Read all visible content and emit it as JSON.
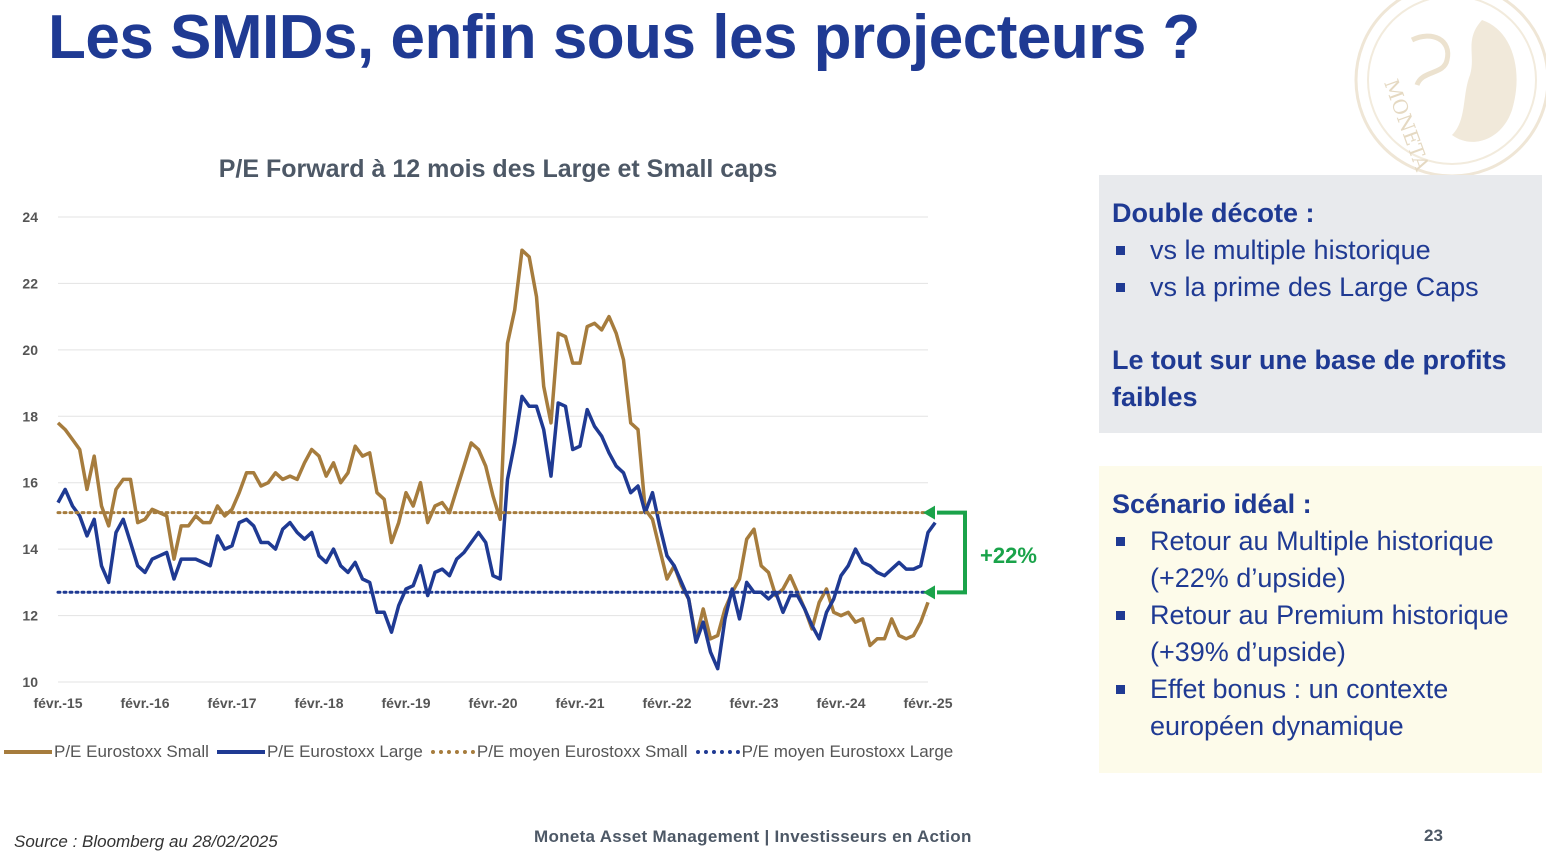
{
  "slide": {
    "title": "Les SMIDs, enfin sous les projecteurs ?",
    "source": "Source : Bloomberg au 28/02/2025",
    "company": "Moneta Asset Management | Investisseurs en Action",
    "page_number": "23"
  },
  "logo": {
    "text": "MONETA",
    "icon": "moneta-coin-logo"
  },
  "colors": {
    "small": "#a67c3d",
    "large": "#1f3a93",
    "accent": "#1aa34a",
    "title": "#1f3a93"
  },
  "annotation": {
    "label": "+22%"
  },
  "box1": {
    "heading": "Double décote :",
    "items": [
      "vs le multiple historique",
      "vs la prime des Large Caps"
    ],
    "subheading_line1": "Le tout sur une base de profits",
    "subheading_line2": "faibles"
  },
  "box2": {
    "heading": "Scénario idéal :",
    "items": [
      {
        "line1": "Retour au Multiple historique",
        "line2": "(+22% d’upside)"
      },
      {
        "line1": "Retour au Premium historique",
        "line2": "(+39% d’upside)"
      },
      {
        "line1": "Effet bonus : un contexte",
        "line2": "européen dynamique"
      }
    ]
  },
  "chart_data": {
    "type": "line",
    "title": "P/E Forward à 12 mois des Large et Small caps",
    "ylim": [
      10,
      24
    ],
    "yticks": [
      10,
      12,
      14,
      16,
      18,
      20,
      22,
      24
    ],
    "xlim": [
      2015.0,
      2025.0
    ],
    "xticks": [
      {
        "x": 2015,
        "label": "févr.-15"
      },
      {
        "x": 2016,
        "label": "févr.-16"
      },
      {
        "x": 2017,
        "label": "févr.-17"
      },
      {
        "x": 2018,
        "label": "févr.-18"
      },
      {
        "x": 2019,
        "label": "févr.-19"
      },
      {
        "x": 2020,
        "label": "févr.-20"
      },
      {
        "x": 2021,
        "label": "févr.-21"
      },
      {
        "x": 2022,
        "label": "févr.-22"
      },
      {
        "x": 2023,
        "label": "févr.-23"
      },
      {
        "x": 2024,
        "label": "févr.-24"
      },
      {
        "x": 2025,
        "label": "févr.-25"
      }
    ],
    "grid": "horizontal",
    "legend_position": "bottom",
    "series": [
      {
        "name": "P/E Eurostoxx Small",
        "style": "solid",
        "color": "#a67c3d",
        "start": 2015.0,
        "step": 0.08333,
        "values": [
          17.8,
          17.6,
          17.3,
          17.0,
          15.8,
          16.8,
          15.3,
          14.7,
          15.8,
          16.1,
          16.1,
          14.8,
          14.9,
          15.2,
          15.1,
          15.0,
          13.7,
          14.7,
          14.7,
          15.0,
          14.8,
          14.8,
          15.3,
          15.0,
          15.2,
          15.7,
          16.3,
          16.3,
          15.9,
          16.0,
          16.3,
          16.1,
          16.2,
          16.1,
          16.6,
          17.0,
          16.8,
          16.2,
          16.6,
          16.0,
          16.3,
          17.1,
          16.8,
          16.9,
          15.7,
          15.5,
          14.2,
          14.8,
          15.7,
          15.3,
          16.0,
          14.8,
          15.3,
          15.4,
          15.1,
          15.8,
          16.5,
          17.2,
          17.0,
          16.5,
          15.6,
          14.9,
          20.2,
          21.2,
          23.0,
          22.8,
          21.6,
          18.9,
          17.8,
          20.5,
          20.4,
          19.6,
          19.6,
          20.7,
          20.8,
          20.6,
          21.0,
          20.5,
          19.7,
          17.8,
          17.6,
          15.2,
          14.9,
          14.0,
          13.1,
          13.5,
          12.9,
          12.5,
          11.3,
          12.2,
          11.3,
          11.4,
          12.2,
          12.7,
          13.1,
          14.3,
          14.6,
          13.5,
          13.3,
          12.6,
          12.8,
          13.2,
          12.7,
          12.2,
          11.6,
          12.4,
          12.8,
          12.1,
          12.0,
          12.1,
          11.8,
          11.9,
          11.1,
          11.3,
          11.3,
          11.9,
          11.4,
          11.3,
          11.4,
          11.8,
          12.4
        ]
      },
      {
        "name": "P/E Eurostoxx Large",
        "style": "solid",
        "color": "#1f3a93",
        "start": 2015.0,
        "step": 0.08333,
        "values": [
          15.4,
          15.8,
          15.3,
          15.0,
          14.4,
          14.9,
          13.5,
          13.0,
          14.5,
          14.9,
          14.2,
          13.5,
          13.3,
          13.7,
          13.8,
          13.9,
          13.1,
          13.7,
          13.7,
          13.7,
          13.6,
          13.5,
          14.4,
          14.0,
          14.1,
          14.8,
          14.9,
          14.7,
          14.2,
          14.2,
          14.0,
          14.6,
          14.8,
          14.5,
          14.3,
          14.5,
          13.8,
          13.6,
          14.0,
          13.5,
          13.3,
          13.6,
          13.1,
          13.0,
          12.1,
          12.1,
          11.5,
          12.3,
          12.8,
          12.9,
          13.5,
          12.6,
          13.3,
          13.4,
          13.2,
          13.7,
          13.9,
          14.2,
          14.5,
          14.2,
          13.2,
          13.1,
          16.1,
          17.2,
          18.6,
          18.3,
          18.3,
          17.6,
          16.2,
          18.4,
          18.3,
          17.0,
          17.1,
          18.2,
          17.7,
          17.4,
          16.9,
          16.5,
          16.3,
          15.7,
          15.9,
          15.1,
          15.7,
          14.7,
          13.8,
          13.5,
          13.0,
          12.5,
          11.2,
          11.8,
          10.9,
          10.4,
          11.9,
          12.8,
          11.9,
          13.0,
          12.7,
          12.7,
          12.5,
          12.7,
          12.1,
          12.6,
          12.6,
          12.2,
          11.7,
          11.3,
          12.1,
          12.5,
          13.2,
          13.5,
          14.0,
          13.6,
          13.5,
          13.3,
          13.2,
          13.4,
          13.6,
          13.4,
          13.4,
          13.5,
          14.5,
          14.8
        ]
      },
      {
        "name": "P/E moyen Eurostoxx Small",
        "style": "dotted",
        "color": "#a67c3d",
        "x": [
          2015.0,
          2025.0
        ],
        "values": [
          15.1,
          15.1
        ]
      },
      {
        "name": "P/E moyen Eurostoxx Large",
        "style": "dotted",
        "color": "#1f3a93",
        "x": [
          2015.0,
          2025.0
        ],
        "values": [
          12.7,
          12.7
        ]
      }
    ]
  }
}
